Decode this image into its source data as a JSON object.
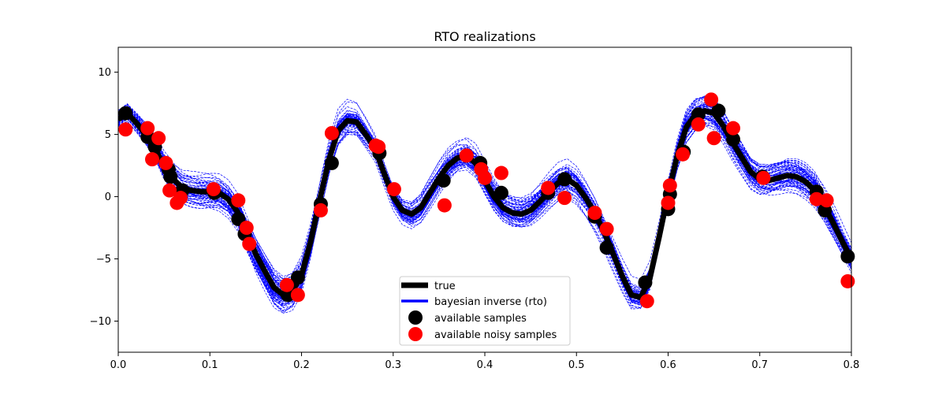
{
  "chart_data": {
    "type": "line",
    "title": "RTO realizations",
    "xlabel": "",
    "ylabel": "",
    "xlim": [
      0.0,
      0.8
    ],
    "ylim": [
      -12.5,
      12.0
    ],
    "xticks": [
      0.0,
      0.1,
      0.2,
      0.3,
      0.4,
      0.5,
      0.6,
      0.7,
      0.8
    ],
    "xtick_labels": [
      "0.0",
      "0.1",
      "0.2",
      "0.3",
      "0.4",
      "0.5",
      "0.6",
      "0.7",
      "0.8"
    ],
    "yticks": [
      -10,
      -5,
      0,
      5,
      10
    ],
    "ytick_labels": [
      "−10",
      "−5",
      "0",
      "5",
      "10"
    ],
    "grid": false,
    "legend_position": "bottom-center",
    "legend": {
      "true": "true",
      "rto": "bayesian inverse (rto)",
      "samples": "available samples",
      "noisy": "available noisy samples"
    },
    "colors": {
      "true": "#000000",
      "rto": "#0000ff",
      "samples": "#000000",
      "noisy": "#ff0000"
    },
    "rto_count": 60,
    "true_curve": {
      "x": [
        0.0,
        0.01,
        0.02,
        0.03,
        0.04,
        0.05,
        0.06,
        0.07,
        0.08,
        0.09,
        0.1,
        0.11,
        0.12,
        0.13,
        0.14,
        0.15,
        0.16,
        0.17,
        0.18,
        0.19,
        0.2,
        0.21,
        0.22,
        0.23,
        0.24,
        0.25,
        0.26,
        0.27,
        0.28,
        0.29,
        0.3,
        0.31,
        0.32,
        0.33,
        0.34,
        0.35,
        0.36,
        0.37,
        0.38,
        0.39,
        0.4,
        0.41,
        0.42,
        0.43,
        0.44,
        0.45,
        0.46,
        0.47,
        0.48,
        0.49,
        0.5,
        0.51,
        0.52,
        0.53,
        0.54,
        0.55,
        0.56,
        0.57,
        0.58,
        0.59,
        0.6,
        0.61,
        0.62,
        0.63,
        0.64,
        0.65,
        0.66,
        0.67,
        0.68,
        0.69,
        0.7,
        0.71,
        0.72,
        0.73,
        0.74,
        0.75,
        0.76,
        0.77,
        0.78,
        0.79,
        0.8
      ],
      "y": [
        6.2,
        6.7,
        5.9,
        5.0,
        3.9,
        2.4,
        1.4,
        0.7,
        0.5,
        0.4,
        0.4,
        0.3,
        -0.2,
        -1.2,
        -2.9,
        -4.6,
        -6.0,
        -7.3,
        -7.9,
        -7.6,
        -6.3,
        -3.6,
        -0.2,
        3.0,
        5.3,
        6.1,
        6.0,
        5.0,
        3.9,
        1.9,
        0.0,
        -1.1,
        -1.4,
        -0.9,
        0.3,
        1.5,
        2.5,
        3.1,
        3.3,
        2.7,
        1.3,
        0.0,
        -0.9,
        -1.3,
        -1.4,
        -1.1,
        -0.4,
        0.4,
        1.1,
        1.4,
        0.9,
        -0.1,
        -1.3,
        -2.8,
        -4.6,
        -6.4,
        -7.9,
        -8.1,
        -6.6,
        -3.3,
        0.2,
        3.3,
        5.6,
        6.6,
        6.9,
        6.7,
        5.7,
        4.4,
        3.2,
        2.0,
        1.4,
        1.3,
        1.5,
        1.7,
        1.6,
        1.2,
        0.5,
        -0.7,
        -2.1,
        -3.6,
        -5.0
      ]
    },
    "samples": {
      "x": [
        0.008,
        0.032,
        0.04,
        0.055,
        0.057,
        0.07,
        0.105,
        0.131,
        0.138,
        0.185,
        0.196,
        0.221,
        0.233,
        0.285,
        0.355,
        0.38,
        0.395,
        0.418,
        0.469,
        0.487,
        0.52,
        0.533,
        0.575,
        0.6,
        0.602,
        0.617,
        0.633,
        0.655,
        0.671,
        0.703,
        0.762,
        0.771,
        0.796
      ],
      "y": [
        6.7,
        4.8,
        4.0,
        2.2,
        1.6,
        0.5,
        0.3,
        -1.8,
        -3.0,
        -7.9,
        -6.5,
        -0.6,
        2.7,
        3.5,
        1.3,
        3.3,
        2.7,
        0.3,
        0.3,
        1.4,
        -1.6,
        -4.1,
        -6.9,
        -1.0,
        0.2,
        3.6,
        6.6,
        6.9,
        4.6,
        1.6,
        0.4,
        -1.1,
        -4.8
      ]
    },
    "noisy_samples": {
      "x": [
        0.008,
        0.032,
        0.037,
        0.044,
        0.052,
        0.056,
        0.064,
        0.068,
        0.104,
        0.131,
        0.14,
        0.143,
        0.184,
        0.196,
        0.221,
        0.233,
        0.281,
        0.284,
        0.301,
        0.356,
        0.38,
        0.396,
        0.4,
        0.418,
        0.469,
        0.487,
        0.52,
        0.533,
        0.577,
        0.6,
        0.602,
        0.616,
        0.633,
        0.647,
        0.65,
        0.671,
        0.704,
        0.762,
        0.773,
        0.796
      ],
      "y": [
        5.4,
        5.5,
        3.0,
        4.7,
        2.7,
        0.5,
        -0.5,
        -0.1,
        0.6,
        -0.3,
        -2.5,
        -3.8,
        -7.1,
        -7.9,
        -1.1,
        5.1,
        4.1,
        4.0,
        0.6,
        -0.7,
        3.3,
        2.2,
        1.5,
        1.9,
        0.7,
        -0.1,
        -1.3,
        -2.6,
        -8.4,
        -0.5,
        0.9,
        3.4,
        5.8,
        7.8,
        4.7,
        5.5,
        1.5,
        -0.2,
        -0.3,
        -6.8
      ]
    }
  }
}
